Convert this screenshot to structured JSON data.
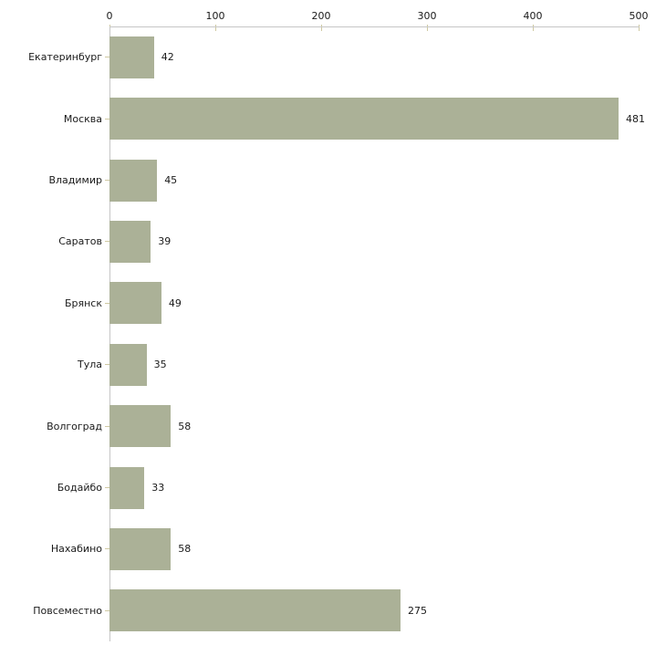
{
  "chart_data": {
    "type": "bar",
    "orientation": "horizontal",
    "title": "",
    "xlabel": "",
    "ylabel": "",
    "categories": [
      "Екатеринбург",
      "Москва",
      "Владимир",
      "Саратов",
      "Брянск",
      "Тула",
      "Волгоград",
      "Бодайбо",
      "Нахабино",
      "Повсеместно"
    ],
    "values": [
      42,
      481,
      45,
      39,
      49,
      35,
      58,
      33,
      58,
      275
    ],
    "xlim": [
      0,
      500
    ],
    "x_ticks": [
      0,
      100,
      200,
      300,
      400,
      500
    ],
    "x_axis_position": "top",
    "grid": false,
    "legend": null,
    "data_labels": true,
    "colors": {
      "bar": "#abb197",
      "axis_line": "#c6c6c6",
      "tick_mark": "#cfc9a2",
      "label_text": "#1a1a1a",
      "background": "#ffffff"
    }
  }
}
